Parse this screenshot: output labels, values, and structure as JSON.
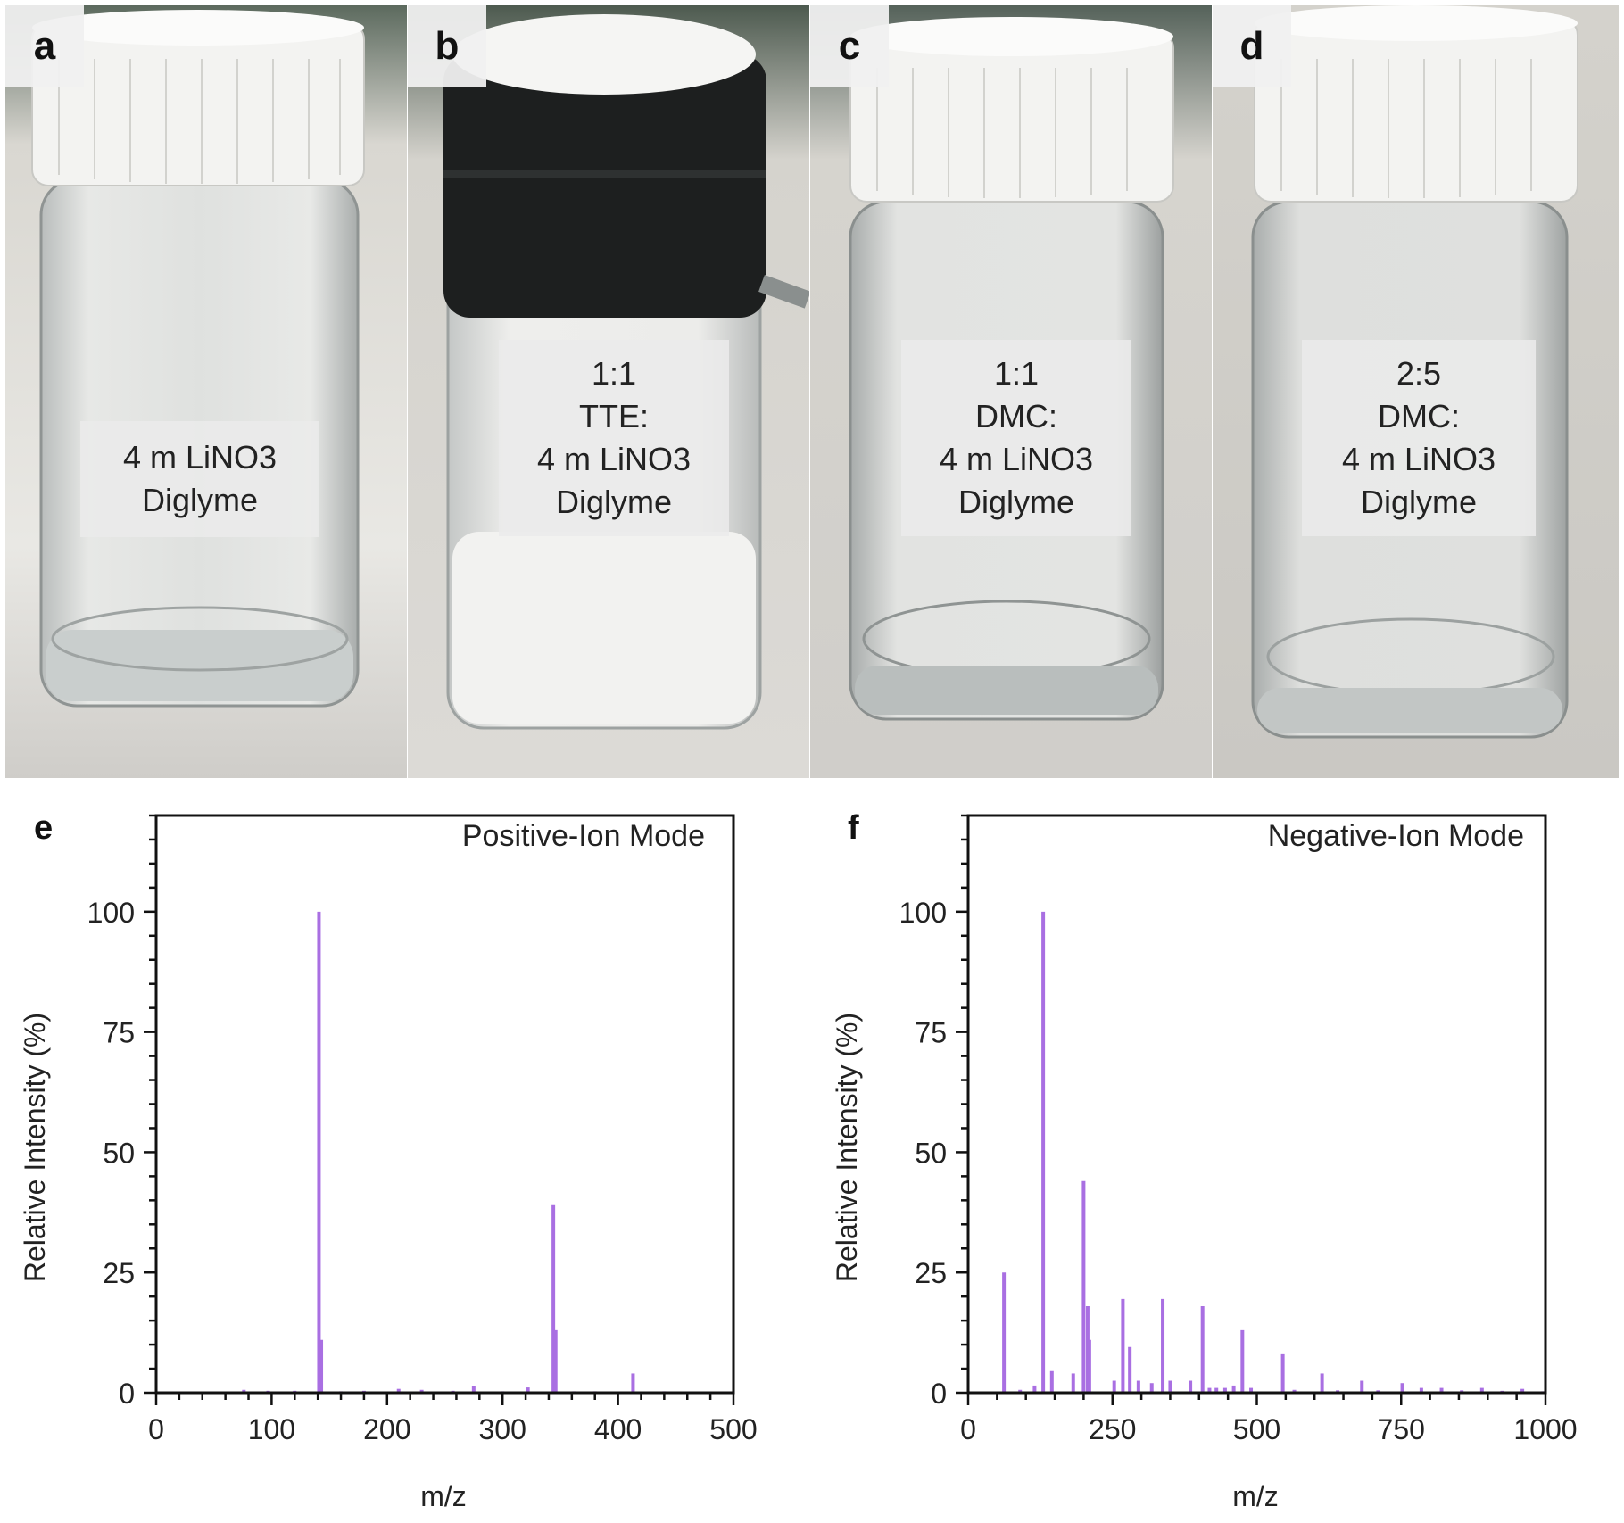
{
  "photos": [
    {
      "letter": "a",
      "label_lines": [
        "4 m LiNO3",
        "Diglyme"
      ]
    },
    {
      "letter": "b",
      "label_lines": [
        "1:1",
        "TTE:",
        "4 m LiNO3",
        "Diglyme"
      ]
    },
    {
      "letter": "c",
      "label_lines": [
        "1:1",
        "DMC:",
        "4 m LiNO3",
        "Diglyme"
      ]
    },
    {
      "letter": "d",
      "label_lines": [
        "2:5",
        "DMC:",
        "4 m LiNO3",
        "Diglyme"
      ]
    }
  ],
  "colors": {
    "series": "#a96fe2",
    "axis": "#111111"
  },
  "chart_data": [
    {
      "type": "bar",
      "panel_letter": "e",
      "title": "Positive-Ion Mode",
      "xlabel": "m/z",
      "ylabel": "Relative Intensity (%)",
      "xlim": [
        0,
        500
      ],
      "ylim": [
        0,
        120
      ],
      "xticks": [
        0,
        100,
        200,
        300,
        400,
        500
      ],
      "yticks": [
        0,
        25,
        50,
        75,
        100
      ],
      "baseline_from": 48,
      "peaks": [
        [
          76,
          0.6
        ],
        [
          97,
          0.4
        ],
        [
          120,
          0.4
        ],
        [
          141,
          100
        ],
        [
          143,
          11
        ],
        [
          160,
          0.3
        ],
        [
          180,
          0.4
        ],
        [
          210,
          0.8
        ],
        [
          230,
          0.6
        ],
        [
          257,
          0.4
        ],
        [
          275,
          1.3
        ],
        [
          300,
          0.3
        ],
        [
          322,
          1.1
        ],
        [
          344,
          39
        ],
        [
          346,
          13
        ],
        [
          362,
          0.3
        ],
        [
          380,
          0.3
        ],
        [
          413,
          4
        ],
        [
          440,
          0.3
        ],
        [
          470,
          0.2
        ]
      ]
    },
    {
      "type": "bar",
      "panel_letter": "f",
      "title": "Negative-Ion Mode",
      "xlabel": "m/z",
      "ylabel": "Relative Intensity (%)",
      "xlim": [
        0,
        1000
      ],
      "ylim": [
        0,
        120
      ],
      "xticks": [
        0,
        250,
        500,
        750,
        1000
      ],
      "yticks": [
        0,
        25,
        50,
        75,
        100
      ],
      "baseline_from": 55,
      "peaks": [
        [
          62,
          25
        ],
        [
          90,
          0.6
        ],
        [
          115,
          1.5
        ],
        [
          130,
          100
        ],
        [
          145,
          4.5
        ],
        [
          182,
          4
        ],
        [
          200,
          44
        ],
        [
          207,
          18
        ],
        [
          210,
          11
        ],
        [
          253,
          2.5
        ],
        [
          268,
          19.5
        ],
        [
          280,
          9.5
        ],
        [
          295,
          2.5
        ],
        [
          318,
          2
        ],
        [
          337,
          19.5
        ],
        [
          350,
          2.5
        ],
        [
          385,
          2.5
        ],
        [
          406,
          18
        ],
        [
          418,
          1
        ],
        [
          430,
          1
        ],
        [
          445,
          1
        ],
        [
          460,
          1.5
        ],
        [
          475,
          13
        ],
        [
          490,
          1
        ],
        [
          545,
          8
        ],
        [
          565,
          0.6
        ],
        [
          613,
          4
        ],
        [
          640,
          0.5
        ],
        [
          682,
          2.5
        ],
        [
          710,
          0.5
        ],
        [
          752,
          2
        ],
        [
          785,
          1
        ],
        [
          820,
          1
        ],
        [
          855,
          0.5
        ],
        [
          890,
          1
        ],
        [
          925,
          0.4
        ],
        [
          960,
          0.8
        ],
        [
          995,
          0.3
        ]
      ]
    }
  ]
}
